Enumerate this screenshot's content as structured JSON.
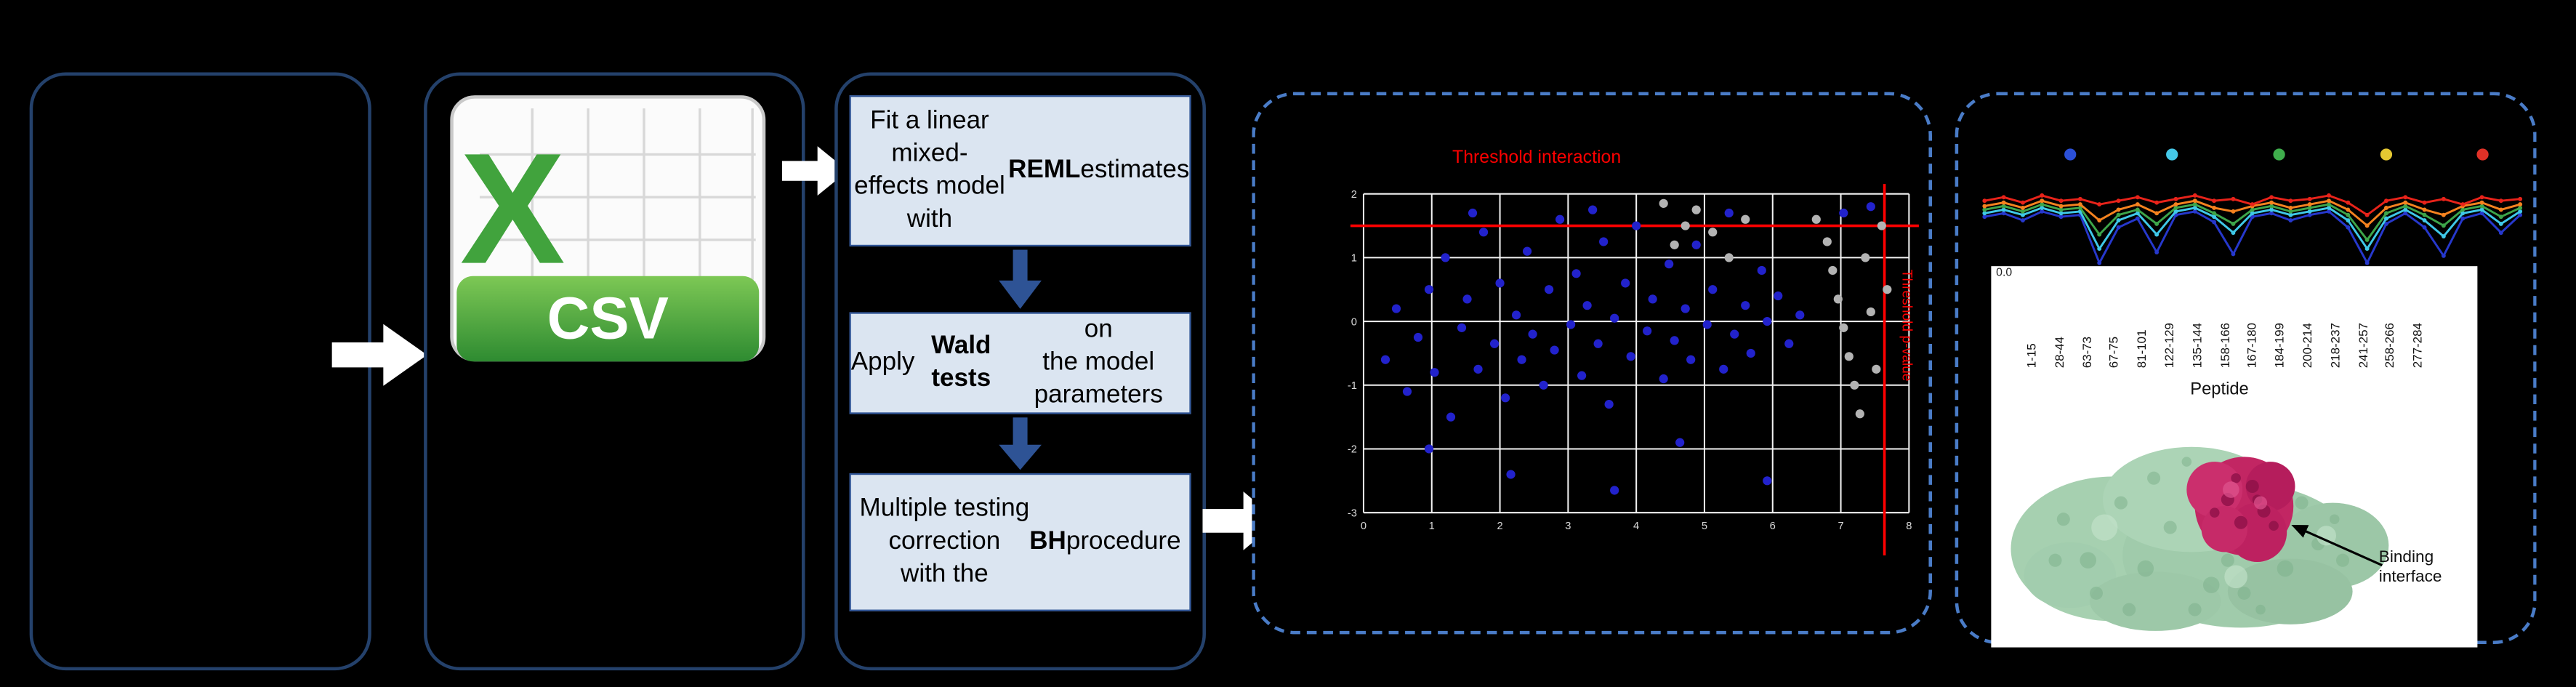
{
  "figure": {
    "csv_icon": {
      "letter": "X",
      "extension": "CSV"
    },
    "steps": [
      {
        "segments": [
          {
            "t": "Fit a linear mixed-\neffects model with\n",
            "b": false
          },
          {
            "t": "REML",
            "b": true
          },
          {
            "t": " estimates",
            "b": false
          }
        ]
      },
      {
        "segments": [
          {
            "t": "Apply ",
            "b": false
          },
          {
            "t": "Wald tests",
            "b": true
          },
          {
            "t": " on\nthe model parameters",
            "b": false
          }
        ]
      },
      {
        "segments": [
          {
            "t": "Multiple testing\ncorrection\nwith the ",
            "b": false
          },
          {
            "t": "BH",
            "b": true
          },
          {
            "t": " procedure",
            "b": false
          }
        ]
      }
    ],
    "protein": {
      "annotation": "Binding interface"
    }
  },
  "colors": {
    "background": "#000000",
    "solid_border": "#24416b",
    "dashed_border": "#4a7cc7",
    "step_fill": "#dbe5f1",
    "step_border": "#2e5395",
    "threshold_red": "#ff0000",
    "point_blue": "#2222cc",
    "point_gray": "#b3b3b3"
  },
  "chart_data": [
    {
      "type": "scatter",
      "title": "Threshold interaction",
      "x_threshold_label": "Threshold p-value",
      "threshold_color": "#ff0000",
      "grid": true,
      "x_ticks": [
        "0",
        "1",
        "2",
        "3",
        "4",
        "5",
        "6",
        "7",
        "8"
      ],
      "y_ticks": [
        "2",
        "1",
        "0",
        "-1",
        "-2",
        "-3"
      ],
      "threshold_y": 0.1,
      "threshold_x": 0.955,
      "series": [
        {
          "name": "interaction-points",
          "color": "#2222cc",
          "points": [
            [
              0.04,
              0.52
            ],
            [
              0.06,
              0.36
            ],
            [
              0.08,
              0.62
            ],
            [
              0.1,
              0.45
            ],
            [
              0.12,
              0.3
            ],
            [
              0.13,
              0.56
            ],
            [
              0.15,
              0.2
            ],
            [
              0.16,
              0.7
            ],
            [
              0.18,
              0.42
            ],
            [
              0.19,
              0.33
            ],
            [
              0.21,
              0.55
            ],
            [
              0.22,
              0.12
            ],
            [
              0.24,
              0.47
            ],
            [
              0.25,
              0.28
            ],
            [
              0.26,
              0.64
            ],
            [
              0.28,
              0.38
            ],
            [
              0.29,
              0.52
            ],
            [
              0.3,
              0.18
            ],
            [
              0.31,
              0.44
            ],
            [
              0.33,
              0.6
            ],
            [
              0.34,
              0.3
            ],
            [
              0.35,
              0.49
            ],
            [
              0.36,
              0.08
            ],
            [
              0.38,
              0.41
            ],
            [
              0.39,
              0.25
            ],
            [
              0.4,
              0.57
            ],
            [
              0.41,
              0.35
            ],
            [
              0.43,
              0.47
            ],
            [
              0.44,
              0.15
            ],
            [
              0.45,
              0.66
            ],
            [
              0.46,
              0.39
            ],
            [
              0.48,
              0.28
            ],
            [
              0.49,
              0.51
            ],
            [
              0.5,
              0.1
            ],
            [
              0.52,
              0.43
            ],
            [
              0.53,
              0.33
            ],
            [
              0.55,
              0.58
            ],
            [
              0.56,
              0.22
            ],
            [
              0.57,
              0.46
            ],
            [
              0.59,
              0.36
            ],
            [
              0.6,
              0.52
            ],
            [
              0.61,
              0.16
            ],
            [
              0.63,
              0.41
            ],
            [
              0.64,
              0.3
            ],
            [
              0.66,
              0.55
            ],
            [
              0.67,
              0.06
            ],
            [
              0.68,
              0.44
            ],
            [
              0.7,
              0.35
            ],
            [
              0.71,
              0.5
            ],
            [
              0.73,
              0.24
            ],
            [
              0.74,
              0.4
            ],
            [
              0.76,
              0.32
            ],
            [
              0.78,
              0.47
            ],
            [
              0.8,
              0.38
            ],
            [
              0.27,
              0.88
            ],
            [
              0.46,
              0.93
            ],
            [
              0.74,
              0.9
            ],
            [
              0.12,
              0.8
            ],
            [
              0.58,
              0.78
            ],
            [
              0.2,
              0.06
            ],
            [
              0.42,
              0.05
            ],
            [
              0.88,
              0.06
            ],
            [
              0.93,
              0.04
            ]
          ]
        },
        {
          "name": "reference-points",
          "color": "#b3b3b3",
          "points": [
            [
              0.83,
              0.08
            ],
            [
              0.85,
              0.15
            ],
            [
              0.86,
              0.24
            ],
            [
              0.87,
              0.33
            ],
            [
              0.88,
              0.42
            ],
            [
              0.89,
              0.51
            ],
            [
              0.9,
              0.6
            ],
            [
              0.91,
              0.69
            ],
            [
              0.92,
              0.2
            ],
            [
              0.93,
              0.37
            ],
            [
              0.94,
              0.55
            ],
            [
              0.95,
              0.1
            ],
            [
              0.61,
              0.05
            ],
            [
              0.64,
              0.12
            ],
            [
              0.67,
              0.2
            ],
            [
              0.7,
              0.08
            ],
            [
              0.57,
              0.16
            ],
            [
              0.96,
              0.3
            ],
            [
              0.55,
              0.03
            ],
            [
              0.59,
              0.1
            ]
          ]
        }
      ]
    },
    {
      "type": "line",
      "xlabel": "Peptide",
      "y_tick_label": "0.0",
      "x_labels": [
        "1-15",
        "28-44",
        "63-73",
        "67-75",
        "81-101",
        "122-129",
        "135-144",
        "158-166",
        "167-180",
        "184-199",
        "200-214",
        "218-237",
        "241-257",
        "258-266",
        "277-284"
      ],
      "dot_colors": [
        "#2b50d8",
        "#45c8e8",
        "#3fae4c",
        "#e5c832",
        "#e03127"
      ],
      "dot_x": [
        0.16,
        0.35,
        0.55,
        0.75,
        0.93
      ],
      "series": [
        {
          "name": "series-red",
          "color": "#e8231a",
          "values": [
            0.3,
            0.26,
            0.32,
            0.24,
            0.3,
            0.28,
            0.34,
            0.3,
            0.26,
            0.32,
            0.28,
            0.24,
            0.3,
            0.28,
            0.34,
            0.26,
            0.3,
            0.28,
            0.24,
            0.32,
            0.46,
            0.3,
            0.26,
            0.32,
            0.28,
            0.34,
            0.26,
            0.3,
            0.28
          ]
        },
        {
          "name": "series-orange",
          "color": "#f5821f",
          "values": [
            0.36,
            0.32,
            0.38,
            0.3,
            0.36,
            0.34,
            0.52,
            0.4,
            0.34,
            0.44,
            0.34,
            0.3,
            0.38,
            0.42,
            0.36,
            0.32,
            0.38,
            0.34,
            0.3,
            0.4,
            0.58,
            0.38,
            0.32,
            0.4,
            0.46,
            0.36,
            0.32,
            0.4,
            0.34
          ]
        },
        {
          "name": "series-green",
          "color": "#3da54a",
          "values": [
            0.4,
            0.36,
            0.42,
            0.34,
            0.4,
            0.38,
            0.68,
            0.46,
            0.4,
            0.56,
            0.38,
            0.34,
            0.44,
            0.56,
            0.4,
            0.36,
            0.42,
            0.38,
            0.34,
            0.46,
            0.74,
            0.44,
            0.36,
            0.46,
            0.58,
            0.4,
            0.36,
            0.48,
            0.38
          ]
        },
        {
          "name": "series-cyan",
          "color": "#3fc8e8",
          "values": [
            0.44,
            0.4,
            0.46,
            0.38,
            0.44,
            0.42,
            0.84,
            0.52,
            0.44,
            0.68,
            0.42,
            0.38,
            0.48,
            0.66,
            0.44,
            0.4,
            0.46,
            0.42,
            0.38,
            0.52,
            0.84,
            0.5,
            0.4,
            0.52,
            0.7,
            0.44,
            0.4,
            0.56,
            0.42
          ]
        },
        {
          "name": "series-blue",
          "color": "#2638cc",
          "values": [
            0.48,
            0.44,
            0.52,
            0.42,
            0.48,
            0.46,
            1.0,
            0.6,
            0.5,
            0.88,
            0.46,
            0.42,
            0.54,
            0.9,
            0.48,
            0.44,
            0.52,
            0.46,
            0.42,
            0.6,
            1.0,
            0.56,
            0.44,
            0.6,
            0.92,
            0.5,
            0.44,
            0.66,
            0.46
          ]
        }
      ]
    }
  ]
}
